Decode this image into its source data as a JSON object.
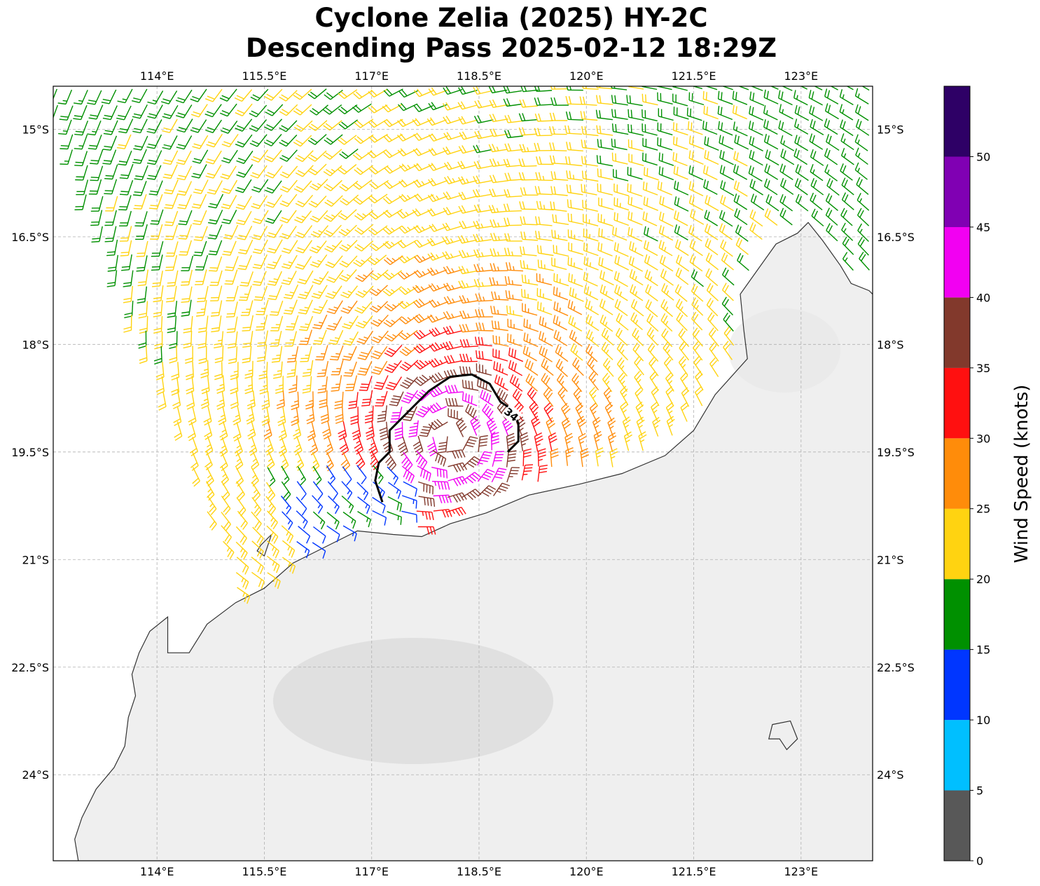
{
  "title_line1": "Cyclone Zelia (2025) HY-2C",
  "title_line2": "Descending Pass 2025-02-12 18:29Z",
  "map": {
    "lon_range": [
      112.55,
      124.0
    ],
    "lat_range": [
      -25.2,
      -14.4
    ],
    "lon_ticks": [
      {
        "value": 114.0,
        "label": "114°E"
      },
      {
        "value": 115.5,
        "label": "115.5°E"
      },
      {
        "value": 117.0,
        "label": "117°E"
      },
      {
        "value": 118.5,
        "label": "118.5°E"
      },
      {
        "value": 120.0,
        "label": "120°E"
      },
      {
        "value": 121.5,
        "label": "121.5°E"
      },
      {
        "value": 123.0,
        "label": "123°E"
      }
    ],
    "lat_ticks": [
      {
        "value": -15.0,
        "label": "15°S"
      },
      {
        "value": -16.5,
        "label": "16.5°S"
      },
      {
        "value": -18.0,
        "label": "18°S"
      },
      {
        "value": -19.5,
        "label": "19.5°S"
      },
      {
        "value": -21.0,
        "label": "21°S"
      },
      {
        "value": -22.5,
        "label": "22.5°S"
      },
      {
        "value": -24.0,
        "label": "24°S"
      }
    ],
    "gridlines": true,
    "background": "grey satellite imagery over land, white ocean",
    "storm_center": {
      "lon": 118.1,
      "lat": -19.3
    },
    "contour_34kt": {
      "label": "34",
      "path": [
        [
          117.15,
          -20.2
        ],
        [
          117.05,
          -19.9
        ],
        [
          117.1,
          -19.65
        ],
        [
          117.25,
          -19.5
        ],
        [
          117.25,
          -19.2
        ],
        [
          117.5,
          -18.95
        ],
        [
          117.8,
          -18.65
        ],
        [
          118.1,
          -18.45
        ],
        [
          118.4,
          -18.42
        ],
        [
          118.65,
          -18.55
        ],
        [
          118.8,
          -18.8
        ],
        [
          118.95,
          -18.9
        ],
        [
          119.05,
          -19.1
        ],
        [
          119.05,
          -19.35
        ],
        [
          118.9,
          -19.5
        ]
      ],
      "label_at": [
        118.95,
        -18.98
      ]
    },
    "coastline": [
      [
        112.9,
        -25.2
      ],
      [
        112.85,
        -24.9
      ],
      [
        112.95,
        -24.6
      ],
      [
        113.15,
        -24.2
      ],
      [
        113.4,
        -23.9
      ],
      [
        113.55,
        -23.6
      ],
      [
        113.6,
        -23.2
      ],
      [
        113.7,
        -22.9
      ],
      [
        113.65,
        -22.6
      ],
      [
        113.75,
        -22.3
      ],
      [
        113.9,
        -22.0
      ],
      [
        114.15,
        -21.8
      ],
      [
        114.15,
        -22.3
      ],
      [
        114.45,
        -22.3
      ],
      [
        114.7,
        -21.9
      ],
      [
        115.1,
        -21.6
      ],
      [
        115.5,
        -21.4
      ],
      [
        115.9,
        -21.05
      ],
      [
        116.3,
        -20.85
      ],
      [
        116.8,
        -20.6
      ],
      [
        117.3,
        -20.65
      ],
      [
        117.7,
        -20.68
      ],
      [
        118.1,
        -20.5
      ],
      [
        118.6,
        -20.35
      ],
      [
        119.2,
        -20.1
      ],
      [
        119.9,
        -19.95
      ],
      [
        120.5,
        -19.8
      ],
      [
        121.1,
        -19.55
      ],
      [
        121.5,
        -19.2
      ],
      [
        121.8,
        -18.7
      ],
      [
        122.25,
        -18.2
      ],
      [
        122.2,
        -17.8
      ],
      [
        122.15,
        -17.3
      ],
      [
        122.4,
        -16.95
      ],
      [
        122.65,
        -16.6
      ],
      [
        122.95,
        -16.45
      ],
      [
        123.1,
        -16.3
      ],
      [
        123.3,
        -16.55
      ],
      [
        123.55,
        -16.9
      ],
      [
        123.7,
        -17.15
      ],
      [
        123.95,
        -17.25
      ],
      [
        124.0,
        -17.3
      ]
    ],
    "islands": [
      [
        [
          115.45,
          -20.8
        ],
        [
          115.6,
          -20.65
        ],
        [
          115.5,
          -20.95
        ],
        [
          115.4,
          -20.88
        ],
        [
          115.45,
          -20.8
        ]
      ],
      [
        [
          122.6,
          -23.3
        ],
        [
          122.85,
          -23.25
        ],
        [
          122.95,
          -23.5
        ],
        [
          122.8,
          -23.65
        ],
        [
          122.7,
          -23.5
        ],
        [
          122.55,
          -23.5
        ],
        [
          122.6,
          -23.3
        ]
      ]
    ]
  },
  "colorbar": {
    "title": "Wind Speed (knots)",
    "ticks": [
      "0",
      "5",
      "10",
      "15",
      "20",
      "25",
      "30",
      "35",
      "40",
      "45",
      "50"
    ],
    "bins": [
      {
        "min": 0,
        "max": 5,
        "color": "#585858"
      },
      {
        "min": 5,
        "max": 10,
        "color": "#00bfff"
      },
      {
        "min": 10,
        "max": 15,
        "color": "#0036ff"
      },
      {
        "min": 15,
        "max": 20,
        "color": "#009000"
      },
      {
        "min": 20,
        "max": 25,
        "color": "#ffd311"
      },
      {
        "min": 25,
        "max": 30,
        "color": "#ff8c0a"
      },
      {
        "min": 30,
        "max": 35,
        "color": "#ff1010"
      },
      {
        "min": 35,
        "max": 40,
        "color": "#82392c"
      },
      {
        "min": 40,
        "max": 45,
        "color": "#f200f2"
      },
      {
        "min": 45,
        "max": 50,
        "color": "#8000b3"
      },
      {
        "min": 50,
        "max": 55,
        "color": "#2e0066"
      }
    ]
  }
}
